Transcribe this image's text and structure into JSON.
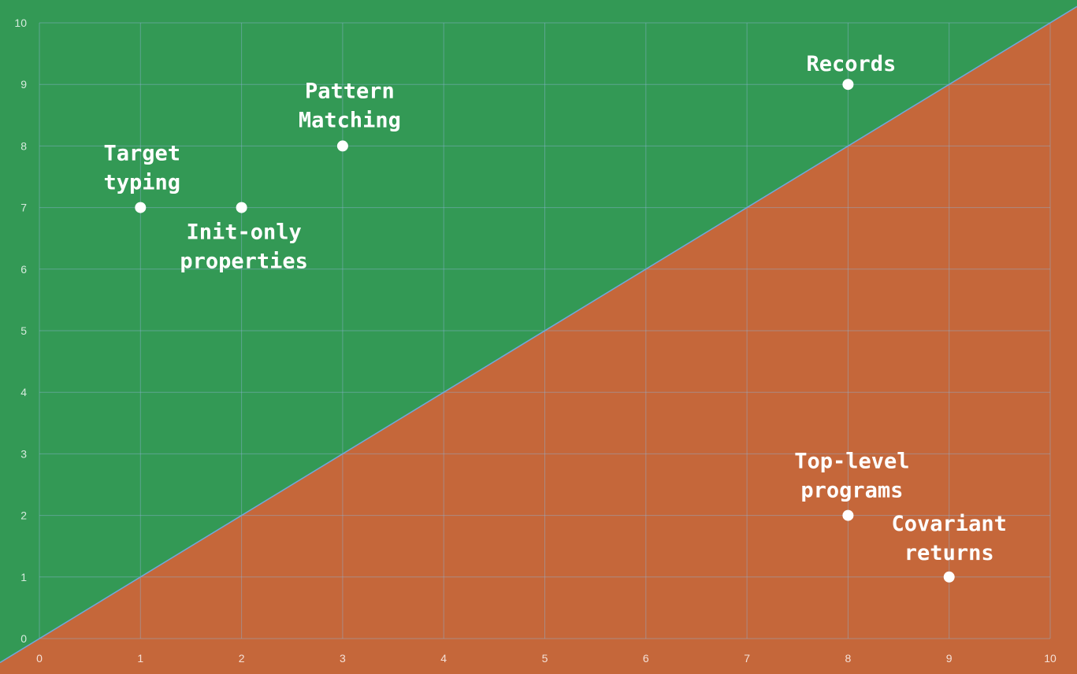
{
  "chart_data": {
    "type": "scatter",
    "title": "",
    "xlabel": "",
    "ylabel": "",
    "xlim": [
      0,
      10
    ],
    "ylim": [
      0,
      10
    ],
    "x_ticks": [
      "0",
      "1",
      "2",
      "3",
      "4",
      "5",
      "6",
      "7",
      "8",
      "9",
      "10"
    ],
    "y_ticks": [
      "0",
      "1",
      "2",
      "3",
      "4",
      "5",
      "6",
      "7",
      "8",
      "9",
      "10"
    ],
    "grid": true,
    "diagonal_line": [
      [
        0,
        0
      ],
      [
        10,
        10
      ]
    ],
    "region_colors": {
      "above_diagonal": "#339955",
      "below_diagonal": "#c5673a"
    },
    "points": [
      {
        "label_lines": [
          "Target",
          "typing"
        ],
        "x": 1,
        "y": 7
      },
      {
        "label_lines": [
          "Init-only",
          "properties"
        ],
        "x": 2,
        "y": 7
      },
      {
        "label_lines": [
          "Pattern",
          "Matching"
        ],
        "x": 3,
        "y": 8
      },
      {
        "label_lines": [
          "Records"
        ],
        "x": 8,
        "y": 9
      },
      {
        "label_lines": [
          "Top-level",
          "programs"
        ],
        "x": 8,
        "y": 2
      },
      {
        "label_lines": [
          "Covariant",
          "returns"
        ],
        "x": 9,
        "y": 1
      }
    ]
  }
}
